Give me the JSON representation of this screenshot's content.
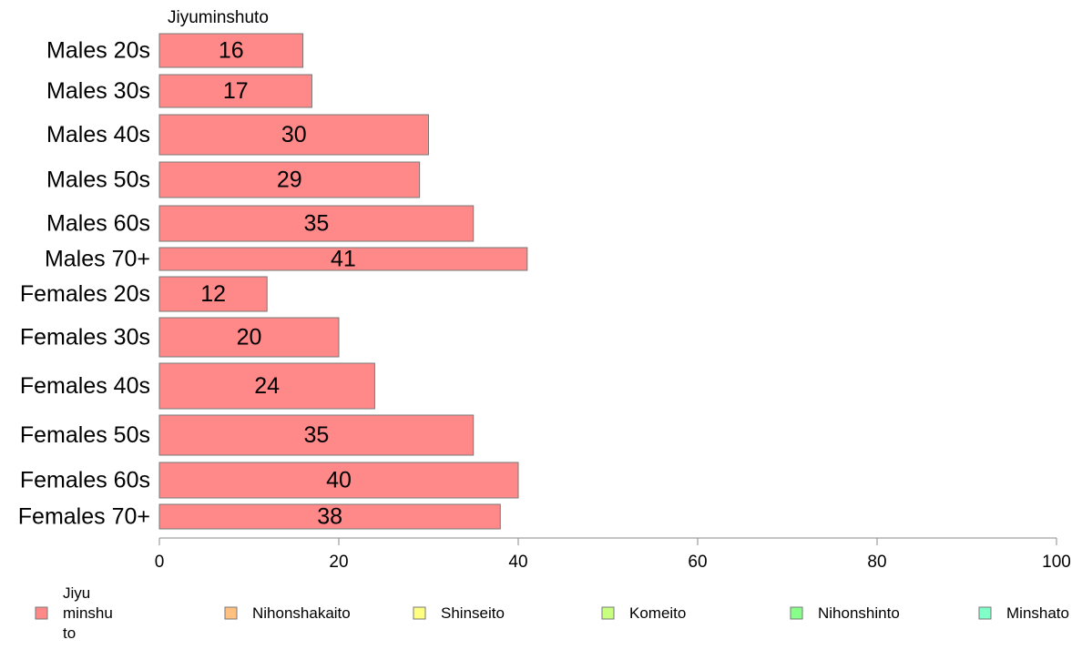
{
  "chart_data": {
    "type": "bar",
    "orientation": "horizontal",
    "series_title": "Jiyuminshuto",
    "categories": [
      "Males 20s",
      "Males 30s",
      "Males 40s",
      "Males 50s",
      "Males 60s",
      "Males 70+",
      "Females 20s",
      "Females 30s",
      "Females 40s",
      "Females 50s",
      "Females 60s",
      "Females 70+"
    ],
    "series": [
      {
        "name": "Jiyuminshuto",
        "color": "#FF8888",
        "values": [
          16,
          17,
          30,
          29,
          35,
          41,
          12,
          20,
          24,
          35,
          40,
          38
        ]
      }
    ],
    "value_labels": [
      "16",
      "17",
      "30",
      "29",
      "35",
      "41",
      "12",
      "20",
      "24",
      "35",
      "40",
      "38"
    ],
    "xlim": [
      0,
      100
    ],
    "xticks": [
      0,
      20,
      40,
      60,
      80,
      100
    ],
    "xtick_labels": [
      "0",
      "20",
      "40",
      "60",
      "80",
      "100"
    ],
    "grid": false,
    "legend_position": "bottom",
    "legend": [
      {
        "name": "Jiyuminshuto",
        "lines": [
          "Jiyu",
          "minshu",
          "to"
        ],
        "color": "#FF8888"
      },
      {
        "name": "Nihonshakaito",
        "lines": [
          "Nihonshakaito"
        ],
        "color": "#FFC080"
      },
      {
        "name": "Shinseito",
        "lines": [
          "Shinseito"
        ],
        "color": "#FFFF80"
      },
      {
        "name": "Komeito",
        "lines": [
          "Komeito"
        ],
        "color": "#C8FF80"
      },
      {
        "name": "Nihonshinto",
        "lines": [
          "Nihonshinto"
        ],
        "color": "#88FF88"
      },
      {
        "name": "Minshato",
        "lines": [
          "Minshato"
        ],
        "color": "#80FFC8"
      }
    ]
  }
}
